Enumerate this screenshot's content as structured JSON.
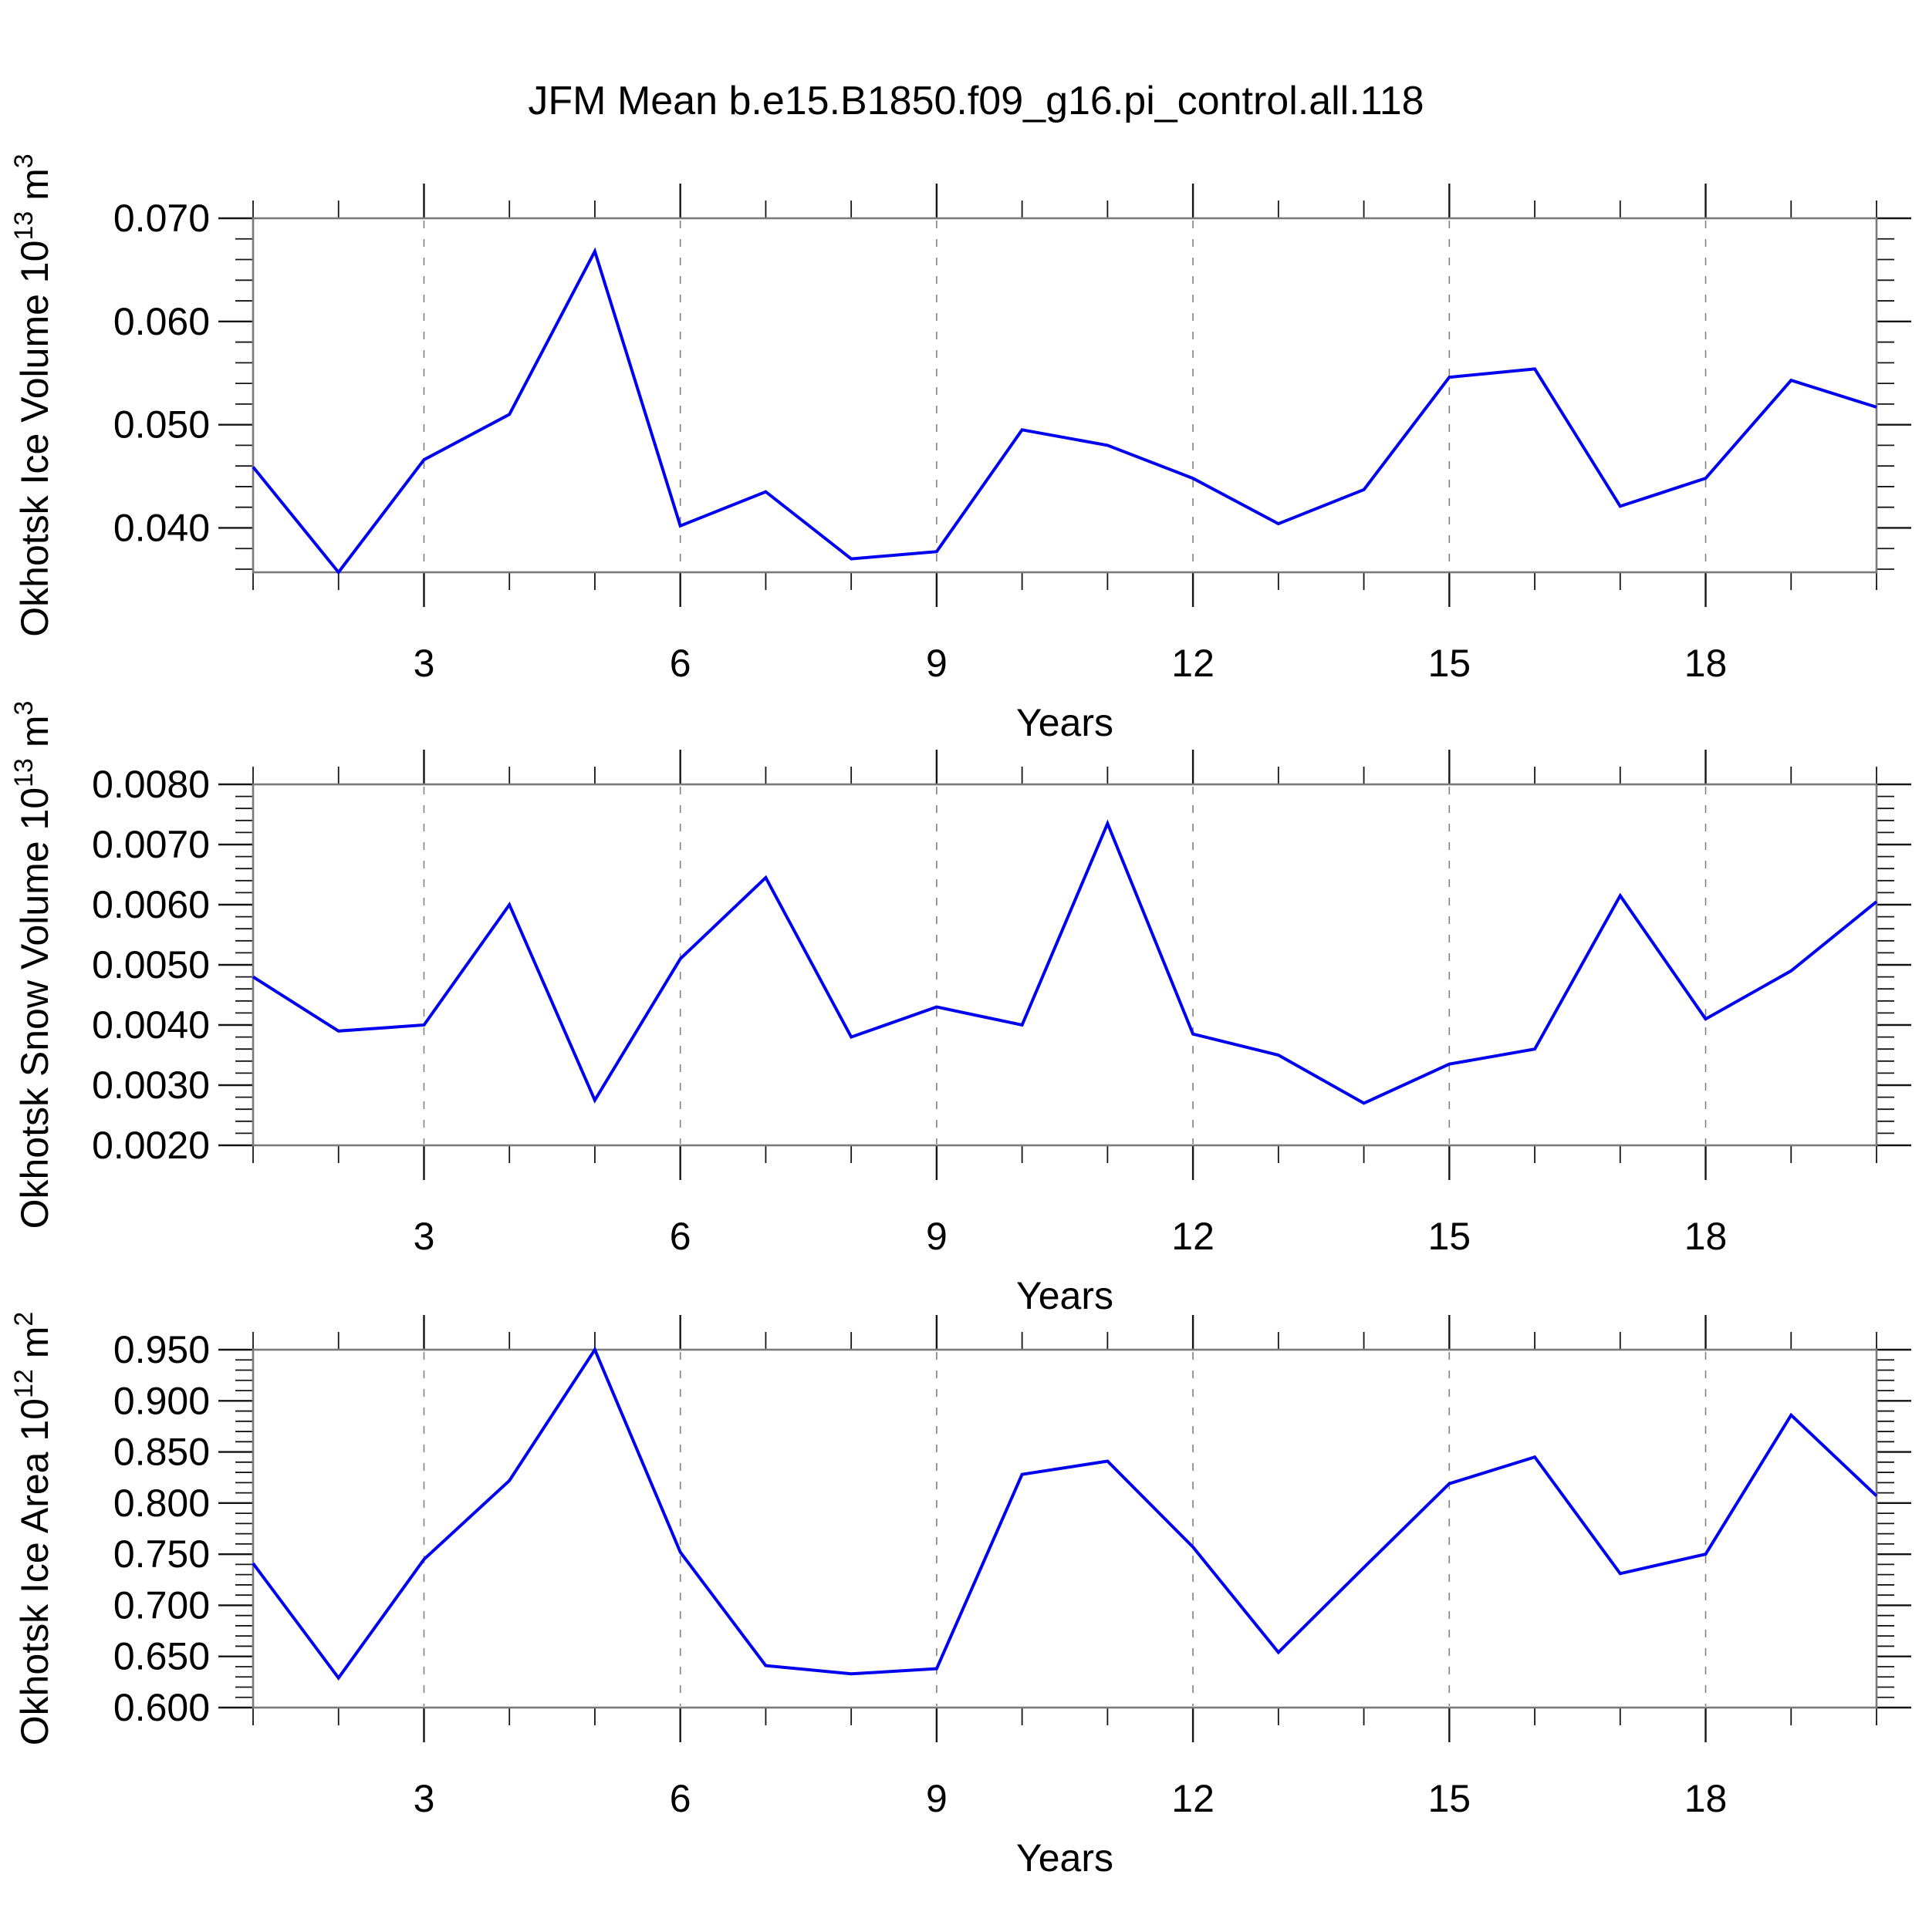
{
  "title": "JFM Mean b.e15.B1850.f09_g16.pi_control.all.118",
  "colors": {
    "line": "#0000f0",
    "frame": "#7a7a7a",
    "tick": "#141414",
    "grid": "#808080",
    "text": "#000000",
    "background": "#ffffff"
  },
  "xlabel": "Years",
  "chart_data": [
    {
      "type": "line",
      "name": "okhotsk-ice-volume",
      "ylabel": "Okhotsk Ice Volume 10^13 m^3",
      "ylabel_parts": [
        {
          "t": "Okhotsk Ice Volume 10"
        },
        {
          "t": "13",
          "sup": true
        },
        {
          "t": " m"
        },
        {
          "t": "3",
          "sup": true
        }
      ],
      "xlabel": "Years",
      "x": [
        1,
        2,
        3,
        4,
        5,
        6,
        7,
        8,
        9,
        10,
        11,
        12,
        13,
        14,
        15,
        16,
        17,
        18,
        19,
        20
      ],
      "values": [
        0.0459,
        0.0357,
        0.0466,
        0.051,
        0.0668,
        0.0402,
        0.0435,
        0.037,
        0.0377,
        0.0495,
        0.048,
        0.0448,
        0.0404,
        0.0437,
        0.0546,
        0.0554,
        0.0421,
        0.0448,
        0.0543,
        0.0517
      ],
      "xlim": [
        1,
        20
      ],
      "ylim": [
        0.0357,
        0.07
      ],
      "xticks": [
        {
          "v": 3,
          "label": "3"
        },
        {
          "v": 6,
          "label": "6"
        },
        {
          "v": 9,
          "label": "9"
        },
        {
          "v": 12,
          "label": "12"
        },
        {
          "v": 15,
          "label": "15"
        },
        {
          "v": 18,
          "label": "18"
        }
      ],
      "xminor_step": 1,
      "yticks": [
        {
          "v": 0.07,
          "label": "0.070"
        },
        {
          "v": 0.06,
          "label": "0.060"
        },
        {
          "v": 0.05,
          "label": "0.050"
        },
        {
          "v": 0.04,
          "label": "0.040"
        }
      ],
      "yminor_step": 0.002,
      "grid": "vertical-dashed-at-major-x",
      "legend": null
    },
    {
      "type": "line",
      "name": "okhotsk-snow-volume",
      "ylabel": "Okhotsk Snow Volume 10^13 m^3",
      "ylabel_parts": [
        {
          "t": "Okhotsk Snow Volume 10"
        },
        {
          "t": "13",
          "sup": true
        },
        {
          "t": " m"
        },
        {
          "t": "3",
          "sup": true
        }
      ],
      "xlabel": "Years",
      "x": [
        1,
        2,
        3,
        4,
        5,
        6,
        7,
        8,
        9,
        10,
        11,
        12,
        13,
        14,
        15,
        16,
        17,
        18,
        19,
        20
      ],
      "values": [
        0.0048,
        0.0039,
        0.004,
        0.006,
        0.00275,
        0.0051,
        0.00645,
        0.0038,
        0.0043,
        0.004,
        0.00735,
        0.00385,
        0.0035,
        0.0027,
        0.00335,
        0.0036,
        0.00615,
        0.0041,
        0.0049,
        0.00605
      ],
      "xlim": [
        1,
        20
      ],
      "ylim": [
        0.002,
        0.008
      ],
      "xticks": [
        {
          "v": 3,
          "label": "3"
        },
        {
          "v": 6,
          "label": "6"
        },
        {
          "v": 9,
          "label": "9"
        },
        {
          "v": 12,
          "label": "12"
        },
        {
          "v": 15,
          "label": "15"
        },
        {
          "v": 18,
          "label": "18"
        }
      ],
      "xminor_step": 1,
      "yticks": [
        {
          "v": 0.008,
          "label": "0.0080"
        },
        {
          "v": 0.007,
          "label": "0.0070"
        },
        {
          "v": 0.006,
          "label": "0.0060"
        },
        {
          "v": 0.005,
          "label": "0.0050"
        },
        {
          "v": 0.004,
          "label": "0.0040"
        },
        {
          "v": 0.003,
          "label": "0.0030"
        },
        {
          "v": 0.002,
          "label": "0.0020"
        }
      ],
      "yminor_step": 0.0002,
      "grid": "vertical-dashed-at-major-x",
      "legend": null
    },
    {
      "type": "line",
      "name": "okhotsk-ice-area",
      "ylabel": "Okhotsk Ice Area 10^12 m^2",
      "ylabel_parts": [
        {
          "t": "Okhotsk Ice Area 10"
        },
        {
          "t": "12",
          "sup": true
        },
        {
          "t": " m"
        },
        {
          "t": "2",
          "sup": true
        }
      ],
      "xlabel": "Years",
      "x": [
        1,
        2,
        3,
        4,
        5,
        6,
        7,
        8,
        9,
        10,
        11,
        12,
        13,
        14,
        15,
        16,
        17,
        18,
        19,
        20
      ],
      "values": [
        0.741,
        0.629,
        0.745,
        0.822,
        0.95,
        0.752,
        0.641,
        0.633,
        0.638,
        0.828,
        0.841,
        0.757,
        0.654,
        0.737,
        0.819,
        0.845,
        0.731,
        0.75,
        0.886,
        0.807
      ],
      "xlim": [
        1,
        20
      ],
      "ylim": [
        0.6,
        0.95
      ],
      "xticks": [
        {
          "v": 3,
          "label": "3"
        },
        {
          "v": 6,
          "label": "6"
        },
        {
          "v": 9,
          "label": "9"
        },
        {
          "v": 12,
          "label": "12"
        },
        {
          "v": 15,
          "label": "15"
        },
        {
          "v": 18,
          "label": "18"
        }
      ],
      "xminor_step": 1,
      "yticks": [
        {
          "v": 0.95,
          "label": "0.950"
        },
        {
          "v": 0.9,
          "label": "0.900"
        },
        {
          "v": 0.85,
          "label": "0.850"
        },
        {
          "v": 0.8,
          "label": "0.800"
        },
        {
          "v": 0.75,
          "label": "0.750"
        },
        {
          "v": 0.7,
          "label": "0.700"
        },
        {
          "v": 0.65,
          "label": "0.650"
        },
        {
          "v": 0.6,
          "label": "0.600"
        }
      ],
      "yminor_step": 0.01,
      "grid": "vertical-dashed-at-major-x",
      "legend": null
    }
  ]
}
